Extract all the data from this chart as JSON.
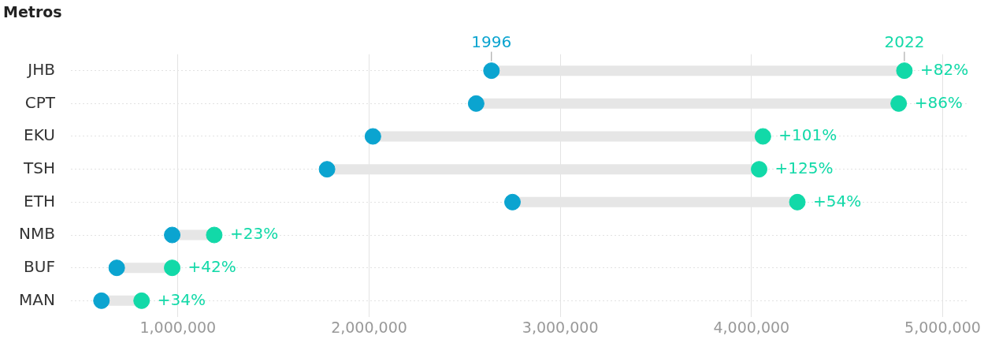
{
  "chart_data": {
    "type": "scatter",
    "orientation": "horizontal",
    "title": "Metros",
    "categories": [
      "JHB",
      "CPT",
      "EKU",
      "TSH",
      "ETH",
      "NMB",
      "BUF",
      "MAN"
    ],
    "series": [
      {
        "name": "1996",
        "color": "#0ba4d0",
        "values": [
          2640000,
          2560000,
          2020000,
          1780000,
          2750000,
          970000,
          680000,
          600000
        ]
      },
      {
        "name": "2022",
        "color": "#12d9a8",
        "values": [
          4800000,
          4770000,
          4060000,
          4040000,
          4240000,
          1190000,
          970000,
          810000
        ]
      }
    ],
    "annotations": [
      {
        "text": "+82%",
        "x": 4800000,
        "y": "JHB"
      },
      {
        "text": "+86%",
        "x": 4770000,
        "y": "CPT"
      },
      {
        "text": "+101%",
        "x": 4060000,
        "y": "EKU"
      },
      {
        "text": "+125%",
        "x": 4040000,
        "y": "TSH"
      },
      {
        "text": "+54%",
        "x": 4240000,
        "y": "ETH"
      },
      {
        "text": "+23%",
        "x": 1190000,
        "y": "NMB"
      },
      {
        "text": "+42%",
        "x": 970000,
        "y": "BUF"
      },
      {
        "text": "+34%",
        "x": 810000,
        "y": "MAN"
      }
    ],
    "xlim": [
      440000,
      5130000
    ],
    "xticks": [
      {
        "value": 1000000,
        "label": "1,000,000"
      },
      {
        "value": 2000000,
        "label": "2,000,000"
      },
      {
        "value": 3000000,
        "label": "3,000,000"
      },
      {
        "value": 4000000,
        "label": "4,000,000"
      },
      {
        "value": 5000000,
        "label": "5,000,000"
      }
    ],
    "grid": true,
    "legend": false,
    "marker": "circle"
  }
}
